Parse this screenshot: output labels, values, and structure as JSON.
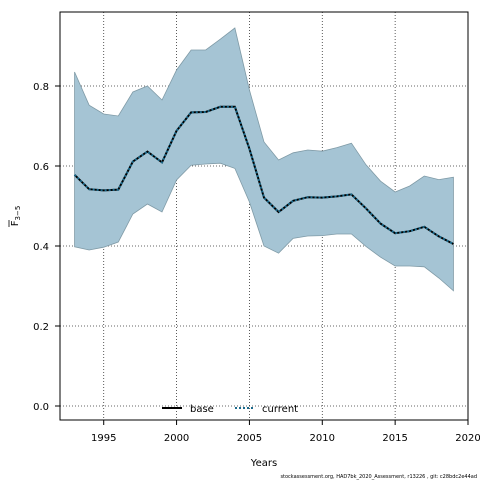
{
  "chart_data": {
    "type": "area",
    "xlabel": "Years",
    "ylabel_main": "F",
    "ylabel_sub": "3−5",
    "xlim": [
      1992,
      2020
    ],
    "ylim": [
      -0.035,
      0.985
    ],
    "x_ticks": [
      1995,
      2000,
      2005,
      2010,
      2015,
      2020
    ],
    "y_ticks": [
      0.0,
      0.2,
      0.4,
      0.6,
      0.8
    ],
    "y_tick_labels": [
      "0.0",
      "0.2",
      "0.4",
      "0.6",
      "0.8"
    ],
    "grid": true,
    "band": {
      "x": [
        1993,
        1994,
        1995,
        1996,
        1997,
        1998,
        1999,
        2000,
        2001,
        2002,
        2003,
        2004,
        2005,
        2006,
        2007,
        2008,
        2009,
        2010,
        2011,
        2012,
        2013,
        2014,
        2015,
        2016,
        2017,
        2018,
        2019
      ],
      "upper": [
        0.835,
        0.752,
        0.73,
        0.725,
        0.785,
        0.8,
        0.765,
        0.84,
        0.89,
        0.89,
        0.917,
        0.945,
        0.79,
        0.66,
        0.615,
        0.633,
        0.64,
        0.637,
        0.646,
        0.657,
        0.603,
        0.562,
        0.535,
        0.55,
        0.575,
        0.566,
        0.572
      ],
      "lower": [
        0.398,
        0.39,
        0.397,
        0.41,
        0.48,
        0.505,
        0.485,
        0.565,
        0.602,
        0.605,
        0.607,
        0.594,
        0.51,
        0.4,
        0.382,
        0.419,
        0.425,
        0.426,
        0.43,
        0.43,
        0.399,
        0.372,
        0.35,
        0.35,
        0.348,
        0.32,
        0.288
      ],
      "color": "#a5c4d4",
      "edge_color": "#7f9aa6"
    },
    "series": [
      {
        "name": "base",
        "values": [
          0.578,
          0.542,
          0.539,
          0.541,
          0.611,
          0.636,
          0.609,
          0.688,
          0.734,
          0.735,
          0.748,
          0.748,
          0.643,
          0.521,
          0.485,
          0.513,
          0.522,
          0.521,
          0.524,
          0.529,
          0.494,
          0.456,
          0.432,
          0.437,
          0.448,
          0.424,
          0.405
        ],
        "style": "solid",
        "color": "#000000"
      },
      {
        "name": "current",
        "values": [
          0.578,
          0.542,
          0.539,
          0.541,
          0.611,
          0.636,
          0.609,
          0.688,
          0.734,
          0.735,
          0.748,
          0.748,
          0.643,
          0.521,
          0.485,
          0.513,
          0.522,
          0.521,
          0.524,
          0.529,
          0.494,
          0.456,
          0.432,
          0.437,
          0.448,
          0.424,
          0.405
        ],
        "style": "dotted",
        "color": "#1a6a8c"
      }
    ],
    "legend_placement": "bottom-center",
    "footer": "stockassessment.org, HAD7bk_2020_Assessment, r13226 , git: c28bdc2e44ad"
  }
}
